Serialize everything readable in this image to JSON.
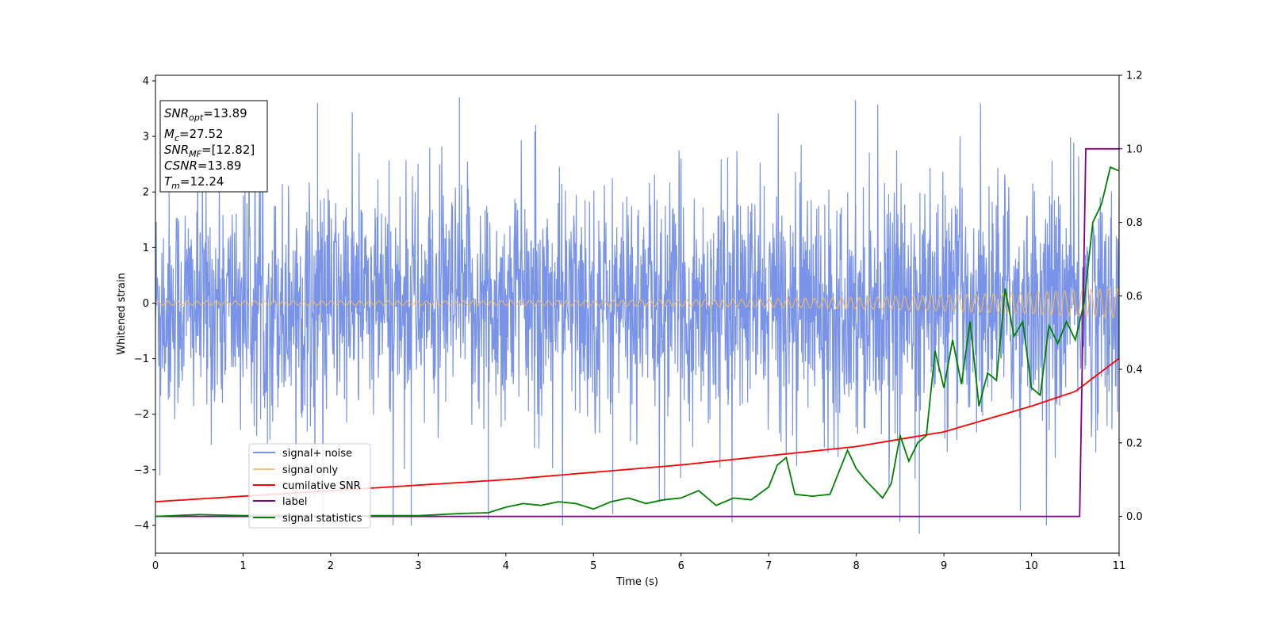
{
  "chart_data": {
    "type": "line",
    "xlabel": "Time (s)",
    "ylabel": "Whitened strain",
    "xlim": [
      0,
      11
    ],
    "ylim": [
      -4.5,
      4.1
    ],
    "y2lim": [
      -0.1,
      1.2
    ],
    "x_ticks": [
      "0",
      "1",
      "2",
      "3",
      "4",
      "5",
      "6",
      "7",
      "8",
      "9",
      "10",
      "11"
    ],
    "y_ticks": [
      "4",
      "3",
      "2",
      "1",
      "0",
      "−1",
      "−2",
      "−3",
      "−4"
    ],
    "y2_ticks": [
      "1.2",
      "1.0",
      "0.8",
      "0.6",
      "0.4",
      "0.2",
      "0.0"
    ],
    "legend_placement": "lower-left",
    "info_box": {
      "snr_opt": {
        "sym": "SNR",
        "sub": "opt",
        "val": "=13.89"
      },
      "mc": {
        "sym": "M",
        "sub": "c",
        "val": "=27.52"
      },
      "snr_mf": {
        "sym": "SNR",
        "sub": "MF",
        "val": "=[12.82]"
      },
      "csnr": {
        "sym": "CSNR",
        "val": "=13.89"
      },
      "tm": {
        "sym": "T",
        "sub": "m",
        "val": "=12.24"
      }
    },
    "series": [
      {
        "name": "signal+ noise",
        "axis": "left",
        "color": "#7893e8",
        "band_core": [
          -1.4,
          1.4
        ],
        "typical_extremes": [
          -2.6,
          2.6
        ],
        "max_spikes": [
          3.65,
          3.6,
          3.7,
          3.65
        ],
        "min_spikes": [
          -4.0,
          -3.9,
          -4.15
        ]
      },
      {
        "name": "signal only",
        "axis": "left",
        "color": "#f4b860",
        "amplitude_start": 0.04,
        "amplitude_end": 0.27,
        "description": "chirp"
      },
      {
        "name": "cumilative SNR",
        "axis": "right",
        "color": "#ff0000",
        "x": [
          0,
          2,
          4,
          6,
          7,
          8,
          9,
          10,
          10.5,
          11
        ],
        "y": [
          0.04,
          0.07,
          0.1,
          0.14,
          0.165,
          0.19,
          0.23,
          0.3,
          0.34,
          0.43
        ]
      },
      {
        "name": "label",
        "axis": "right",
        "color": "#800080",
        "x": [
          0,
          10.55,
          10.62,
          11
        ],
        "y": [
          0.0,
          0.0,
          1.0,
          1.0
        ]
      },
      {
        "name": "signal statistics",
        "axis": "right",
        "color": "#008000",
        "x": [
          0,
          0.5,
          1,
          1.5,
          2,
          2.5,
          3,
          3.5,
          3.8,
          4,
          4.2,
          4.4,
          4.6,
          4.8,
          5,
          5.2,
          5.4,
          5.6,
          5.8,
          6,
          6.2,
          6.4,
          6.6,
          6.8,
          7,
          7.1,
          7.2,
          7.3,
          7.5,
          7.7,
          7.9,
          8.0,
          8.1,
          8.3,
          8.4,
          8.5,
          8.6,
          8.7,
          8.8,
          8.9,
          9.0,
          9.1,
          9.2,
          9.3,
          9.4,
          9.5,
          9.6,
          9.7,
          9.8,
          9.9,
          10.0,
          10.1,
          10.2,
          10.3,
          10.4,
          10.5,
          10.6,
          10.7,
          10.8,
          10.9,
          11
        ],
        "y": [
          0.0,
          0.005,
          0.002,
          0.003,
          0.0,
          0.002,
          0.002,
          0.008,
          0.01,
          0.025,
          0.035,
          0.03,
          0.04,
          0.035,
          0.02,
          0.04,
          0.05,
          0.035,
          0.045,
          0.05,
          0.07,
          0.03,
          0.05,
          0.045,
          0.08,
          0.14,
          0.16,
          0.06,
          0.055,
          0.06,
          0.18,
          0.13,
          0.1,
          0.05,
          0.09,
          0.22,
          0.15,
          0.2,
          0.22,
          0.45,
          0.35,
          0.48,
          0.36,
          0.53,
          0.3,
          0.39,
          0.37,
          0.62,
          0.49,
          0.53,
          0.35,
          0.33,
          0.52,
          0.47,
          0.53,
          0.48,
          0.58,
          0.8,
          0.85,
          0.95,
          0.94
        ]
      }
    ]
  }
}
